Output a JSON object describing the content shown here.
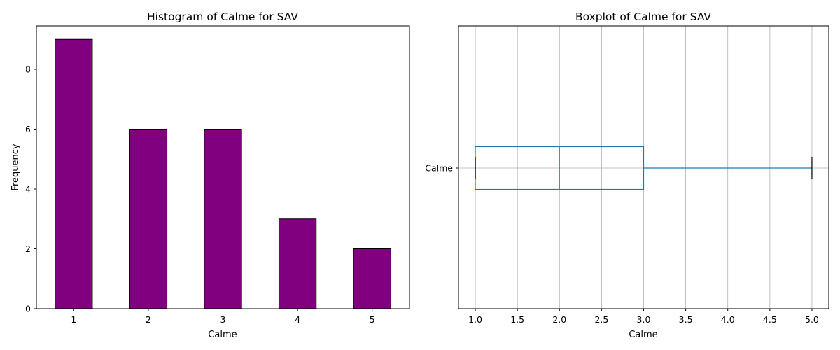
{
  "chart_data": [
    {
      "type": "bar",
      "title": "Histogram of Calme for SAV",
      "xlabel": "Calme",
      "ylabel": "Frequency",
      "categories": [
        "1",
        "2",
        "3",
        "4",
        "5"
      ],
      "values": [
        9,
        6,
        6,
        3,
        2
      ],
      "ylim": [
        0,
        9.45
      ],
      "yticks": [
        "0",
        "2",
        "4",
        "6",
        "8"
      ],
      "colors": {
        "bar_fill": "#800080",
        "bar_edge": "#000000"
      },
      "grid": false
    },
    {
      "type": "boxplot",
      "orientation": "horizontal",
      "title": "Boxplot of Calme for SAV",
      "xlabel": "Calme",
      "category": "Calme",
      "stats": {
        "whisker_low": 1.0,
        "q1": 1.0,
        "median": 2.0,
        "q3": 3.0,
        "whisker_high": 5.0
      },
      "xlim": [
        0.8,
        5.2
      ],
      "xticks": [
        "1.0",
        "1.5",
        "2.0",
        "2.5",
        "3.0",
        "3.5",
        "4.0",
        "4.5",
        "5.0"
      ],
      "colors": {
        "box": "#1f77b4",
        "median": "#2ca02c",
        "caps": "#000000",
        "grid": "#b0b0b0"
      },
      "grid": true
    }
  ]
}
